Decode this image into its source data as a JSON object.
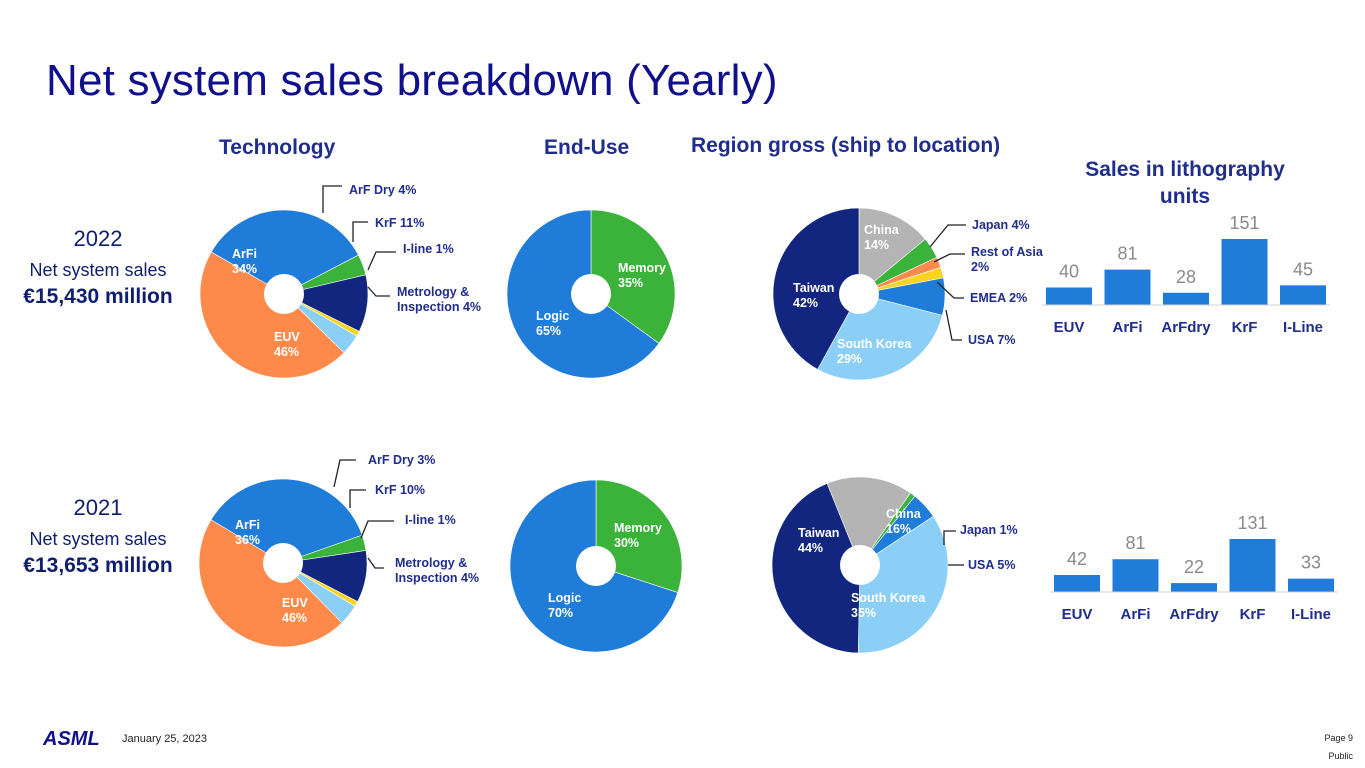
{
  "title": "Net system sales breakdown (Yearly)",
  "headers": {
    "technology": "Technology",
    "end_use": "End-Use",
    "region": "Region gross (ship to location)",
    "units_line1": "Sales in lithography",
    "units_line2": "units"
  },
  "years": [
    {
      "year": "2022",
      "label": "Net system sales",
      "amount": "€15,430 million"
    },
    {
      "year": "2021",
      "label": "Net system sales",
      "amount": "€13,653 million"
    }
  ],
  "footer": {
    "logo_text": "ASML",
    "date": "January 25, 2023",
    "page": "Page 9",
    "classification": "Public"
  },
  "colors": {
    "title": "#10108c",
    "blue": "#1f7cd9",
    "orange": "#fd8a4b",
    "green": "#3bb33b",
    "navy": "#13267f",
    "yellow": "#f9d41e",
    "lightblue": "#8ccff6",
    "grey": "#b4b4b4",
    "bar": "#1f7cd9"
  },
  "chart_data": [
    {
      "type": "pie",
      "group": "Technology",
      "year": "2022",
      "slices": [
        {
          "name": "ArFi",
          "value": 34,
          "label": "ArFi\n34%",
          "color": "#1f7cd9"
        },
        {
          "name": "ArF Dry",
          "value": 4,
          "label": "ArF Dry 4%",
          "color": "#3bb33b"
        },
        {
          "name": "KrF",
          "value": 11,
          "label": "KrF 11%",
          "color": "#13267f"
        },
        {
          "name": "I-line",
          "value": 1,
          "label": "I-line 1%",
          "color": "#f9d41e"
        },
        {
          "name": "Metrology & Inspection",
          "value": 4,
          "label": "Metrology &\nInspection 4%",
          "color": "#8ccff6"
        },
        {
          "name": "EUV",
          "value": 46,
          "label": "EUV\n46%",
          "color": "#fd8a4b"
        }
      ]
    },
    {
      "type": "pie",
      "group": "End-Use",
      "year": "2022",
      "slices": [
        {
          "name": "Memory",
          "value": 35,
          "label": "Memory\n35%",
          "color": "#3bb33b"
        },
        {
          "name": "Logic",
          "value": 65,
          "label": "Logic\n65%",
          "color": "#1f7cd9"
        }
      ]
    },
    {
      "type": "pie",
      "group": "Region gross (ship to location)",
      "year": "2022",
      "slices": [
        {
          "name": "China",
          "value": 14,
          "label": "China\n14%",
          "color": "#b4b4b4"
        },
        {
          "name": "Japan",
          "value": 4,
          "label": "Japan 4%",
          "color": "#3bb33b"
        },
        {
          "name": "Rest of Asia",
          "value": 2,
          "label": "Rest of Asia\n2%",
          "color": "#fd8a4b"
        },
        {
          "name": "EMEA",
          "value": 2,
          "label": "EMEA 2%",
          "color": "#f9d41e"
        },
        {
          "name": "USA",
          "value": 7,
          "label": "USA 7%",
          "color": "#1f7cd9"
        },
        {
          "name": "South Korea",
          "value": 29,
          "label": "South Korea\n29%",
          "color": "#8ccff6"
        },
        {
          "name": "Taiwan",
          "value": 42,
          "label": "Taiwan\n42%",
          "color": "#13267f"
        }
      ]
    },
    {
      "type": "bar",
      "group": "Sales in lithography units",
      "year": "2022",
      "categories": [
        "EUV",
        "ArFi",
        "ArFdry",
        "KrF",
        "I-Line"
      ],
      "values": [
        40,
        81,
        28,
        151,
        45
      ],
      "ylim": [
        0,
        151
      ]
    },
    {
      "type": "pie",
      "group": "Technology",
      "year": "2021",
      "slices": [
        {
          "name": "ArFi",
          "value": 36,
          "label": "ArFi\n36%",
          "color": "#1f7cd9"
        },
        {
          "name": "ArF Dry",
          "value": 3,
          "label": "ArF Dry 3%",
          "color": "#3bb33b"
        },
        {
          "name": "KrF",
          "value": 10,
          "label": "KrF 10%",
          "color": "#13267f"
        },
        {
          "name": "I-line",
          "value": 1,
          "label": "I-line 1%",
          "color": "#f9d41e"
        },
        {
          "name": "Metrology & Inspection",
          "value": 4,
          "label": "Metrology &\nInspection 4%",
          "color": "#8ccff6"
        },
        {
          "name": "EUV",
          "value": 46,
          "label": "EUV\n46%",
          "color": "#fd8a4b"
        }
      ]
    },
    {
      "type": "pie",
      "group": "End-Use",
      "year": "2021",
      "slices": [
        {
          "name": "Memory",
          "value": 30,
          "label": "Memory\n30%",
          "color": "#3bb33b"
        },
        {
          "name": "Logic",
          "value": 70,
          "label": "Logic\n70%",
          "color": "#1f7cd9"
        }
      ]
    },
    {
      "type": "pie",
      "group": "Region gross (ship to location)",
      "year": "2021",
      "slices": [
        {
          "name": "China",
          "value": 16,
          "label": "China\n16%",
          "color": "#b4b4b4"
        },
        {
          "name": "Japan",
          "value": 1,
          "label": "Japan 1%",
          "color": "#3bb33b"
        },
        {
          "name": "USA",
          "value": 5,
          "label": "USA 5%",
          "color": "#1f7cd9"
        },
        {
          "name": "South Korea",
          "value": 35,
          "label": "South Korea\n35%",
          "color": "#8ccff6"
        },
        {
          "name": "Taiwan",
          "value": 44,
          "label": "Taiwan\n44%",
          "color": "#13267f"
        }
      ]
    },
    {
      "type": "bar",
      "group": "Sales in lithography units",
      "year": "2021",
      "categories": [
        "EUV",
        "ArFi",
        "ArFdry",
        "KrF",
        "I-Line"
      ],
      "values": [
        42,
        81,
        22,
        131,
        33
      ],
      "ylim": [
        0,
        131
      ]
    }
  ]
}
